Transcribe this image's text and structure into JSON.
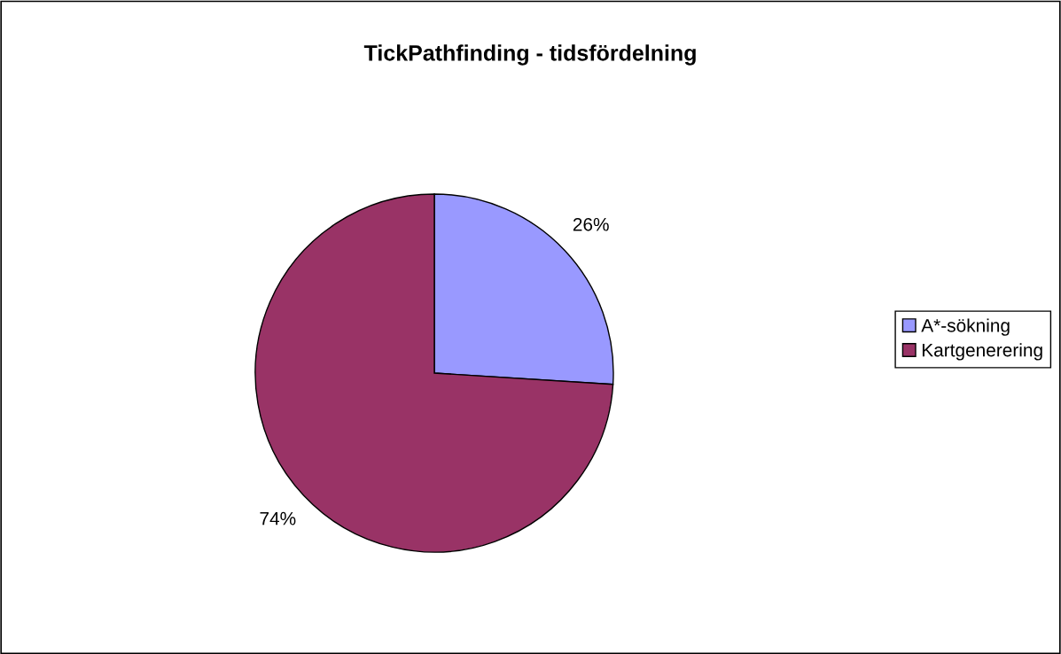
{
  "chart_data": {
    "type": "pie",
    "title": "TickPathfinding - tidsfördelning",
    "categories": [
      "A*-sökning",
      "Kartgenerering"
    ],
    "values": [
      26,
      74
    ],
    "colors": [
      "#9999ff",
      "#993366"
    ],
    "value_labels": [
      "26%",
      "74%"
    ],
    "legend": "right"
  }
}
